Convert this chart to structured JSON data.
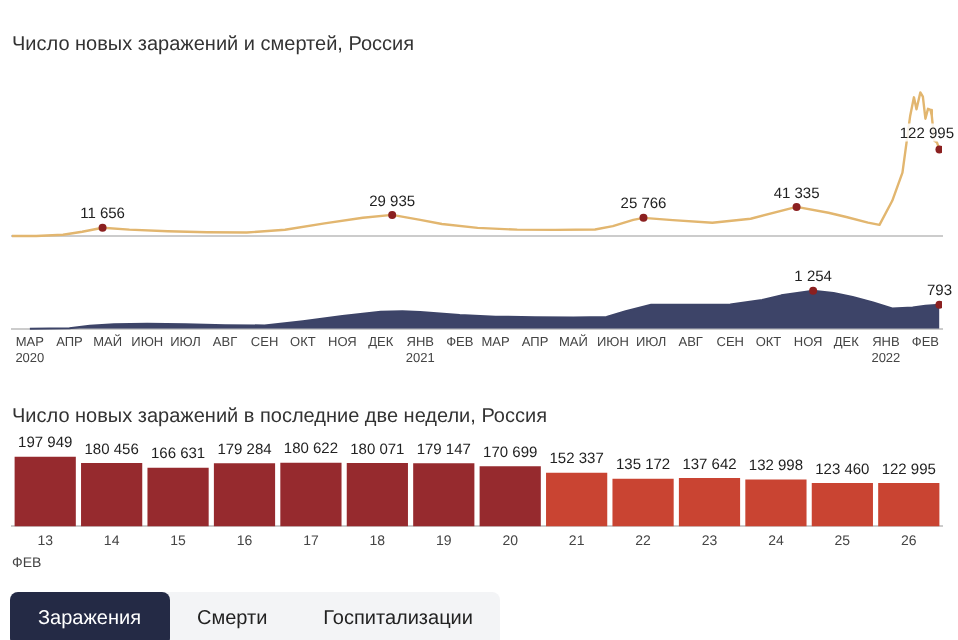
{
  "chart_data": [
    {
      "type": "line",
      "title": "Число новых заражений и смертей, Россия",
      "color": "#e2b66f",
      "tick_labels": false,
      "xlim": [
        "2020-03-01",
        "2022-02-28"
      ],
      "x": [
        "2020-03-01",
        "2020-03-20",
        "2020-04-10",
        "2020-04-25",
        "2020-05-11",
        "2020-06-01",
        "2020-07-01",
        "2020-08-01",
        "2020-09-01",
        "2020-10-01",
        "2020-11-01",
        "2020-12-01",
        "2020-12-24",
        "2021-01-15",
        "2021-02-01",
        "2021-03-01",
        "2021-04-01",
        "2021-05-01",
        "2021-06-01",
        "2021-06-15",
        "2021-07-01",
        "2021-07-09",
        "2021-08-01",
        "2021-09-01",
        "2021-10-01",
        "2021-11-06",
        "2021-12-01",
        "2021-12-15",
        "2022-01-01",
        "2022-01-10",
        "2022-01-20",
        "2022-01-28",
        "2022-02-03",
        "2022-02-06",
        "2022-02-08",
        "2022-02-11",
        "2022-02-13",
        "2022-02-15",
        "2022-02-17",
        "2022-02-19",
        "2022-02-20",
        "2022-02-22",
        "2022-02-24",
        "2022-02-26"
      ],
      "values": [
        0,
        50,
        1700,
        6000,
        11656,
        9000,
        6700,
        5400,
        4900,
        8900,
        18000,
        26000,
        29935,
        23000,
        17000,
        11500,
        9000,
        8700,
        9300,
        14000,
        23000,
        25766,
        22500,
        18800,
        24500,
        41335,
        33000,
        27000,
        19000,
        15800,
        50000,
        90000,
        170000,
        197000,
        180000,
        203949,
        197949,
        166631,
        180622,
        179147,
        170699,
        135172,
        132998,
        122995
      ],
      "value_labels": [
        null,
        null,
        null,
        null,
        "11 656",
        null,
        null,
        null,
        null,
        null,
        null,
        null,
        "29 935",
        null,
        null,
        null,
        null,
        null,
        null,
        null,
        null,
        "25 766",
        null,
        null,
        null,
        "41 335",
        null,
        null,
        null,
        null,
        null,
        null,
        null,
        null,
        null,
        null,
        null,
        null,
        null,
        null,
        null,
        null,
        null,
        "122 995"
      ]
    },
    {
      "type": "area",
      "color": "#3d4468",
      "tick_labels": "x",
      "xlim": [
        "2020-03-01",
        "2022-02-28"
      ],
      "xticks": [
        {
          "value": "2020-03-15",
          "label": "МАР\n2020"
        },
        {
          "value": "2020-04-15",
          "label": "АПР"
        },
        {
          "value": "2020-05-15",
          "label": "МАЙ"
        },
        {
          "value": "2020-06-15",
          "label": "ИЮН"
        },
        {
          "value": "2020-07-15",
          "label": "ИЮЛ"
        },
        {
          "value": "2020-08-15",
          "label": "АВГ"
        },
        {
          "value": "2020-09-15",
          "label": "СЕН"
        },
        {
          "value": "2020-10-15",
          "label": "ОКТ"
        },
        {
          "value": "2020-11-15",
          "label": "НОЯ"
        },
        {
          "value": "2020-12-15",
          "label": "ДЕК"
        },
        {
          "value": "2021-01-15",
          "label": "ЯНВ\n2021"
        },
        {
          "value": "2021-02-15",
          "label": "ФЕВ"
        },
        {
          "value": "2021-03-15",
          "label": "МАР"
        },
        {
          "value": "2021-04-15",
          "label": "АПР"
        },
        {
          "value": "2021-05-15",
          "label": "МАЙ"
        },
        {
          "value": "2021-06-15",
          "label": "ИЮН"
        },
        {
          "value": "2021-07-15",
          "label": "ИЮЛ"
        },
        {
          "value": "2021-08-15",
          "label": "АВГ"
        },
        {
          "value": "2021-09-15",
          "label": "СЕН"
        },
        {
          "value": "2021-10-15",
          "label": "ОКТ"
        },
        {
          "value": "2021-11-15",
          "label": "НОЯ"
        },
        {
          "value": "2021-12-15",
          "label": "ДЕК"
        },
        {
          "value": "2022-01-15",
          "label": "ЯНВ\n2022"
        },
        {
          "value": "2022-02-15",
          "label": "ФЕВ"
        }
      ],
      "x": [
        "2020-03-15",
        "2020-04-15",
        "2020-05-01",
        "2020-05-20",
        "2020-06-15",
        "2020-07-15",
        "2020-08-15",
        "2020-09-15",
        "2020-10-15",
        "2020-11-15",
        "2020-12-15",
        "2021-01-01",
        "2021-01-15",
        "2021-02-15",
        "2021-03-15",
        "2021-04-15",
        "2021-05-15",
        "2021-06-10",
        "2021-06-25",
        "2021-07-15",
        "2021-08-15",
        "2021-09-15",
        "2021-10-10",
        "2021-10-25",
        "2021-11-19",
        "2021-12-05",
        "2021-12-20",
        "2022-01-05",
        "2022-01-20",
        "2022-02-05",
        "2022-02-15",
        "2022-02-26"
      ],
      "values": [
        0,
        20,
        100,
        150,
        170,
        150,
        120,
        110,
        250,
        420,
        560,
        580,
        550,
        450,
        400,
        380,
        370,
        390,
        580,
        790,
        790,
        800,
        950,
        1100,
        1254,
        1180,
        1050,
        870,
        670,
        700,
        760,
        793
      ],
      "value_labels": [
        null,
        null,
        null,
        null,
        null,
        null,
        null,
        null,
        null,
        null,
        null,
        null,
        null,
        null,
        null,
        null,
        null,
        null,
        null,
        null,
        null,
        null,
        null,
        null,
        "1 254",
        null,
        null,
        null,
        null,
        null,
        null,
        "793"
      ]
    },
    {
      "type": "bar",
      "title": "Число новых заражений в последние две недели, Россия",
      "xlabel": "ФЕВ",
      "tick_labels": "x",
      "data_labels": true,
      "categories": [
        "13",
        "14",
        "15",
        "16",
        "17",
        "18",
        "19",
        "20",
        "21",
        "22",
        "23",
        "24",
        "25",
        "26"
      ],
      "values": [
        197949,
        180456,
        166631,
        179284,
        180622,
        180071,
        179147,
        170699,
        152337,
        135172,
        137642,
        132998,
        123460,
        122995
      ],
      "colors": [
        "#962a2e",
        "#962a2e",
        "#962a2e",
        "#962a2e",
        "#962a2e",
        "#962a2e",
        "#962a2e",
        "#962a2e",
        "#c94432",
        "#c94432",
        "#c94432",
        "#c94432",
        "#c94432",
        "#c94432"
      ]
    },
    {
      "type": "other",
      "annotations": [
        "Заражения",
        "Смерти",
        "Госпитализации"
      ]
    }
  ]
}
